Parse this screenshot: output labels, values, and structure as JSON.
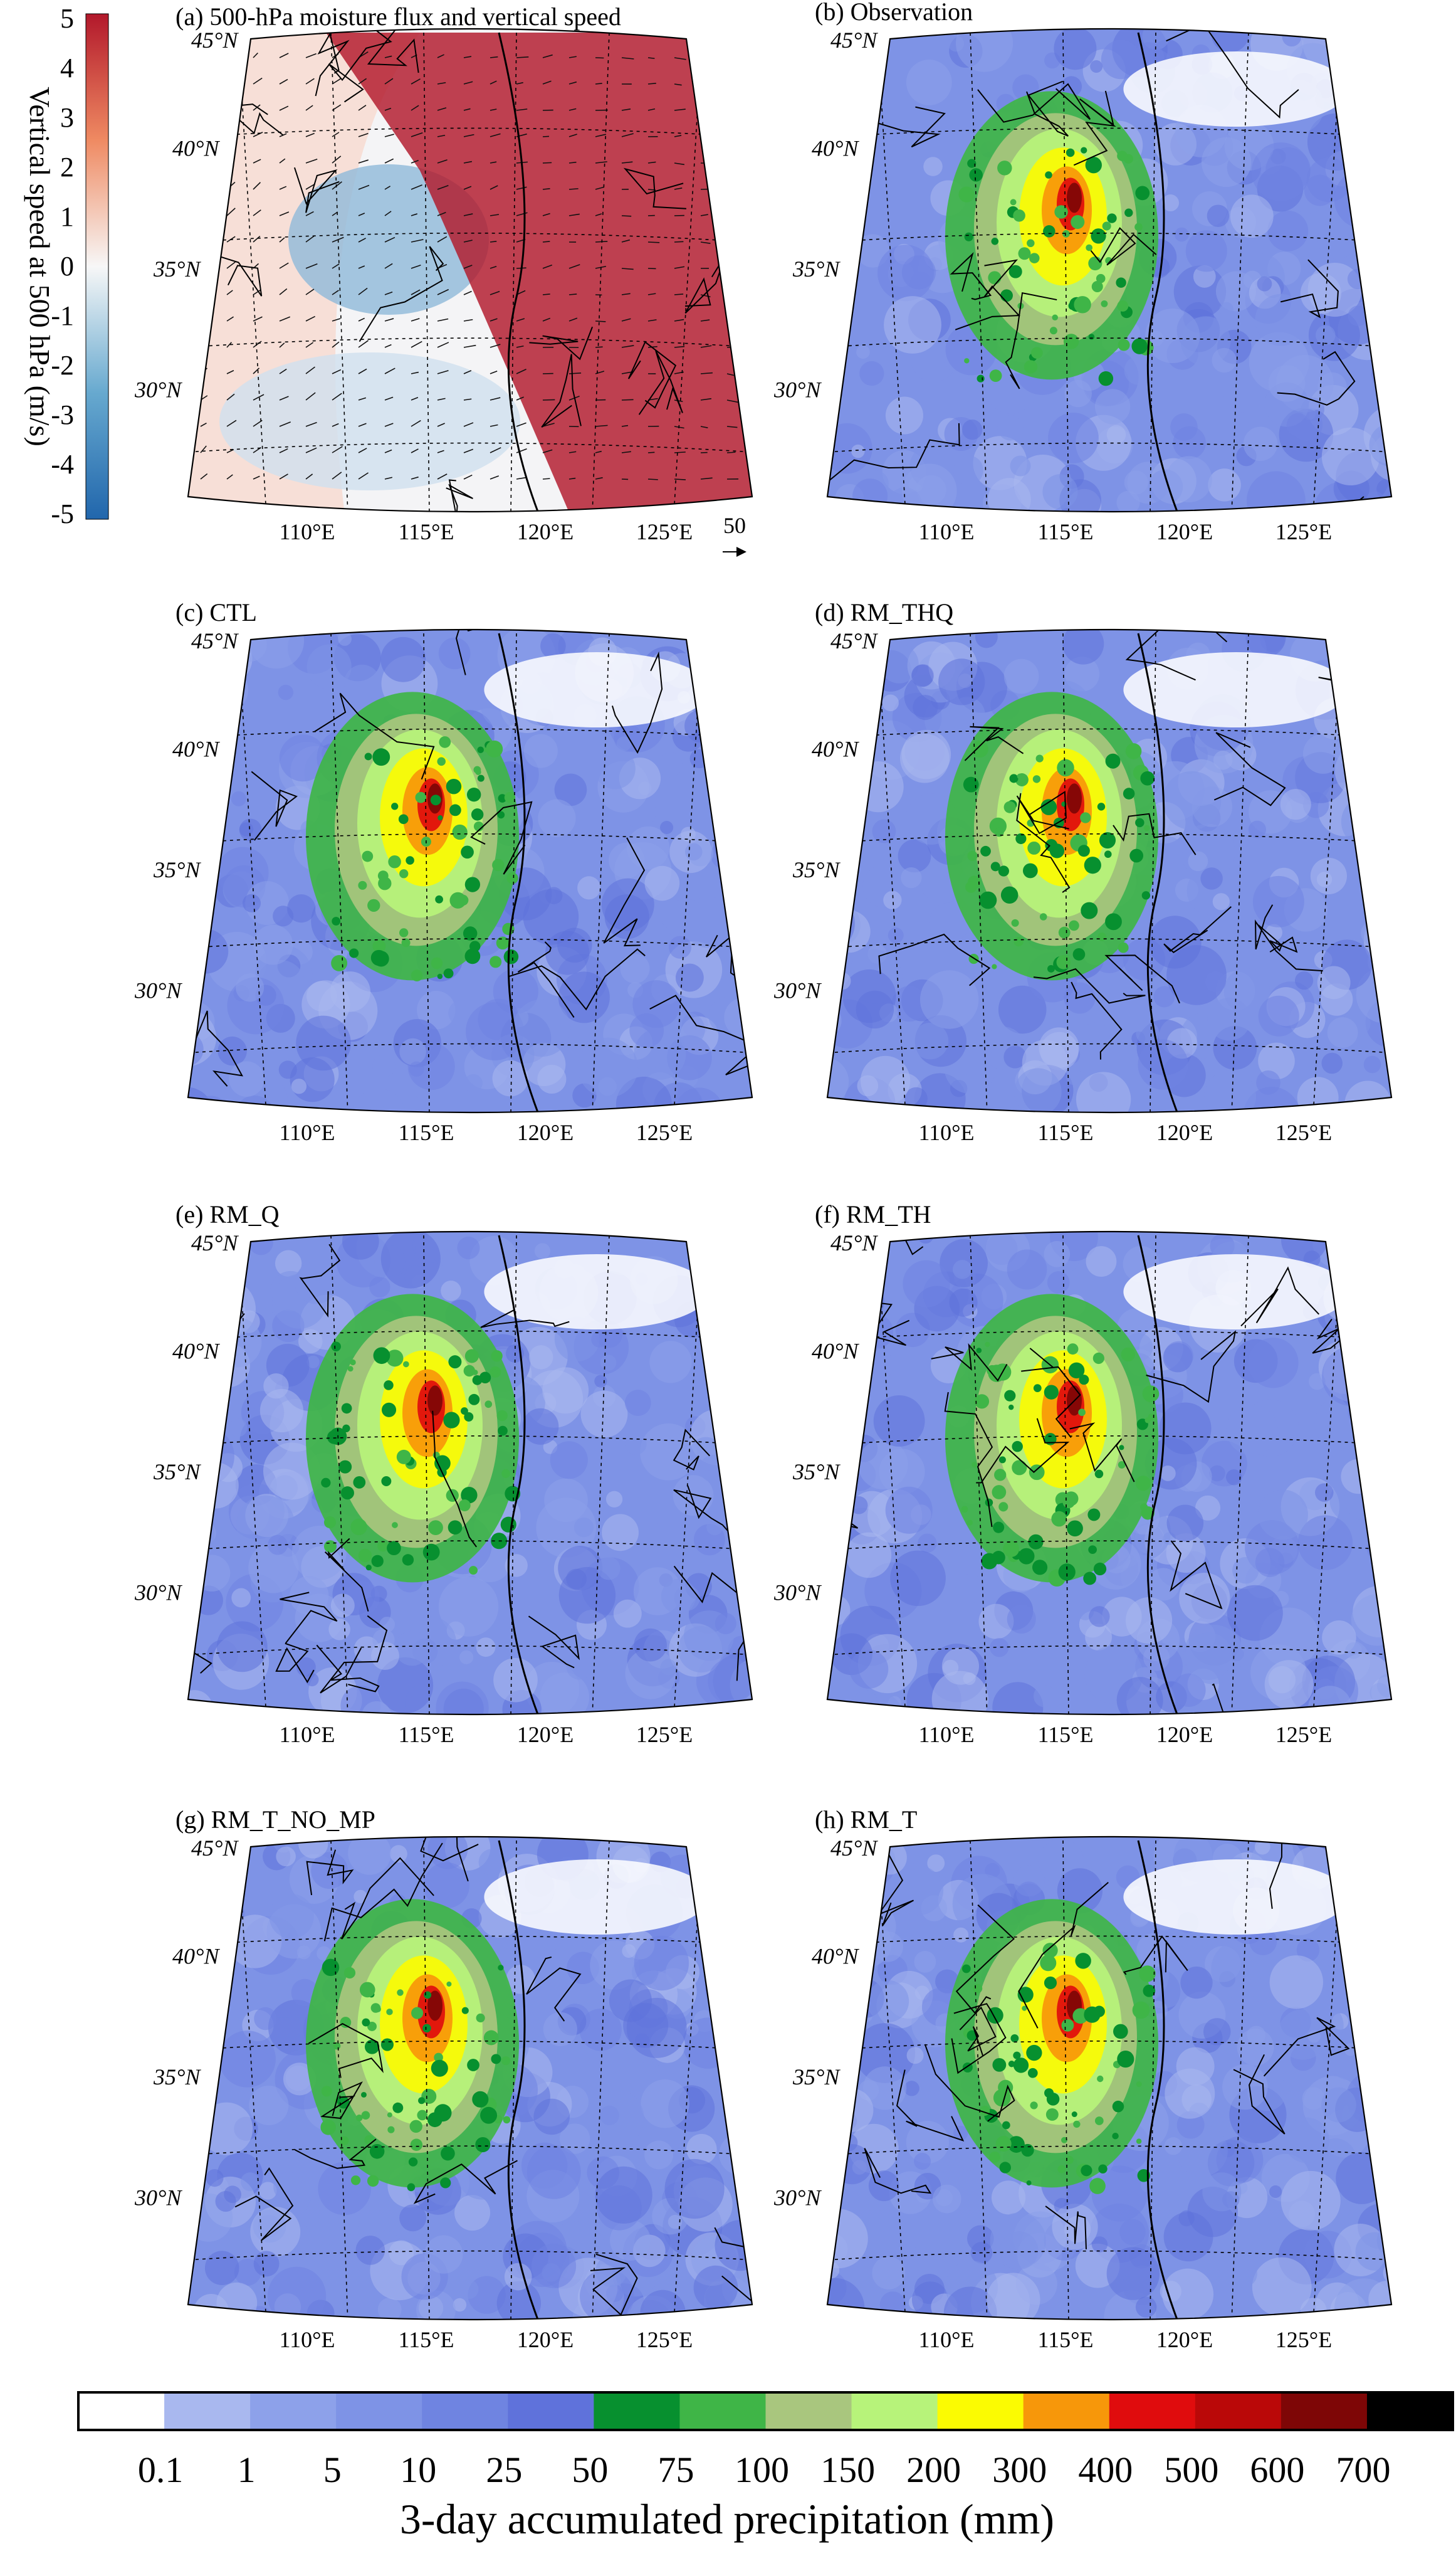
{
  "figure": {
    "colorbar_title": "3-day accumulated precipitation (mm)",
    "colorbar_ticks": [
      "0.1",
      "1",
      "5",
      "10",
      "25",
      "50",
      "75",
      "100",
      "150",
      "200",
      "300",
      "400",
      "500",
      "600",
      "700"
    ],
    "colorbar_colors": [
      "#ffffff",
      "#a9b8ef",
      "#8da1ea",
      "#7e93e6",
      "#6f84e1",
      "#5f72db",
      "#07902f",
      "#3fb547",
      "#a9c67e",
      "#b7f37a",
      "#fbfb02",
      "#f7970a",
      "#e00c0d",
      "#ba0808",
      "#7e0606",
      "#000000"
    ],
    "vertical_speed_cbar": {
      "label": "Vertical speed at 500 hPa (m/s)",
      "ticks": [
        "5",
        "4",
        "3",
        "2",
        "1",
        "0",
        "-1",
        "-2",
        "-3",
        "-4",
        "-5"
      ],
      "top_color": "#b2182b",
      "bottom_color": "#2166ac"
    },
    "vector_ref_label": "50",
    "lon_labels": [
      "110°E",
      "115°E",
      "120°E",
      "125°E"
    ],
    "lat_labels": [
      "45°N",
      "40°N",
      "35°N",
      "30°N"
    ]
  },
  "panels": [
    {
      "id": "a",
      "title": "(a) 500-hPa moisture flux and vertical speed"
    },
    {
      "id": "b",
      "title": "(b) Observation"
    },
    {
      "id": "c",
      "title": "(c) CTL"
    },
    {
      "id": "d",
      "title": "(d) RM_THQ"
    },
    {
      "id": "e",
      "title": "(e) RM_Q"
    },
    {
      "id": "f",
      "title": "(f) RM_TH"
    },
    {
      "id": "g",
      "title": "(g) RM_T_NO_MP"
    },
    {
      "id": "h",
      "title": "(h) RM_T"
    }
  ],
  "chart_data": {
    "type": "heatmap",
    "title": "",
    "colorbar_label": "3-day accumulated precipitation (mm)",
    "colorbar_levels": [
      0.1,
      1,
      5,
      10,
      25,
      50,
      75,
      100,
      150,
      200,
      300,
      400,
      500,
      600,
      700
    ],
    "vertical_speed_levels": [
      5,
      4,
      3,
      2,
      1,
      0,
      -1,
      -2,
      -3,
      -4,
      -5
    ],
    "vertical_speed_label": "Vertical speed at 500 hPa (m/s)",
    "lon_ticks": [
      "110°E",
      "115°E",
      "120°E",
      "125°E"
    ],
    "lat_ticks": [
      "45°N",
      "40°N",
      "35°N",
      "30°N"
    ],
    "lon_range": [
      105,
      130
    ],
    "lat_range": [
      28,
      45
    ],
    "panels": [
      "(a) 500-hPa moisture flux and vertical speed",
      "(b) Observation",
      "(c) CTL",
      "(d) RM_THQ",
      "(e) RM_Q",
      "(f) RM_TH",
      "(g) RM_T_NO_MP",
      "(h) RM_T"
    ],
    "precip_maxima": [
      {
        "panel": "b",
        "max_mm": 600
      },
      {
        "panel": "c",
        "max_mm": 700
      },
      {
        "panel": "d",
        "max_mm": 400
      },
      {
        "panel": "e",
        "max_mm": 600
      },
      {
        "panel": "f",
        "max_mm": 500
      },
      {
        "panel": "g",
        "max_mm": 600
      },
      {
        "panel": "h",
        "max_mm": 500
      }
    ]
  }
}
